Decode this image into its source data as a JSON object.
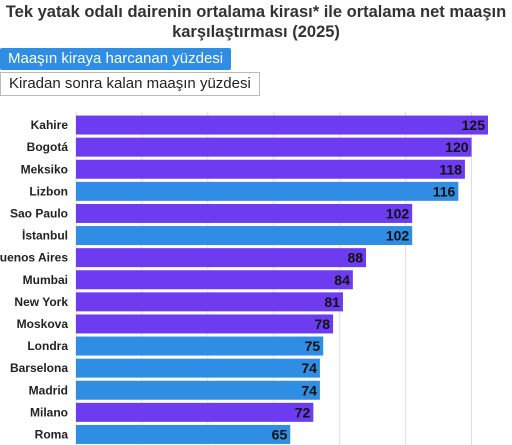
{
  "title": "Tek yatak odalı dairenin ortalama kirası* ile ortalama net maaşın karşılaştırması (2025)",
  "tabs": [
    {
      "label": "Maaşın kiraya harcanan yüzdesi",
      "active": true
    },
    {
      "label": "Kiradan sonra kalan maaşın yüzdesi",
      "active": false
    }
  ],
  "colors": {
    "tab_active": "#2f8ee4",
    "purple": "#6d3cf0",
    "blue": "#2f8ee4",
    "grid": "#dddddd"
  },
  "chart_data": {
    "type": "bar",
    "orientation": "horizontal",
    "title": "Tek yatak odalı dairenin ortalama kirası* ile ortalama net maaşın karşılaştırması (2025)",
    "xlabel": "",
    "ylabel": "",
    "xlim": [
      0,
      130
    ],
    "categories": [
      "Kahire",
      "Bogotá",
      "Meksiko",
      "Lizbon",
      "Sao Paulo",
      "İstanbul",
      "Buenos Aires",
      "Mumbai",
      "New York",
      "Moskova",
      "Londra",
      "Barselona",
      "Madrid",
      "Milano",
      "Roma"
    ],
    "values": [
      125,
      120,
      118,
      116,
      102,
      102,
      88,
      84,
      81,
      78,
      75,
      74,
      74,
      72,
      65
    ],
    "bar_colors": [
      "purple",
      "purple",
      "purple",
      "blue",
      "purple",
      "blue",
      "purple",
      "purple",
      "purple",
      "purple",
      "blue",
      "blue",
      "blue",
      "purple",
      "blue"
    ],
    "grid": true,
    "data_labels": true
  }
}
